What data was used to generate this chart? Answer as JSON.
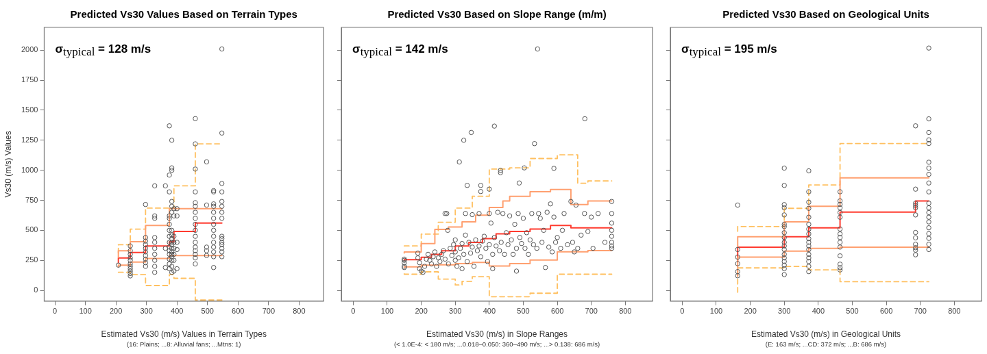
{
  "chart_data": [
    {
      "type": "scatter",
      "title": "Predicted Vs30 Values Based on Terrain Types",
      "xlabel": "Estimated Vs30 (m/s) Values in Terrain Types",
      "ylabel": "Vs30 (m/s) Values",
      "annotations": [
        "σ$_{typical}$ = 128 m/s",
        "(16: Plains; ...8: Alluvial fans; ...Mtns: 1)"
      ],
      "xlim": [
        -35,
        880
      ],
      "ylim": [
        -90,
        2190
      ],
      "xticks": [
        0,
        100,
        200,
        300,
        400,
        500,
        600,
        700,
        800
      ],
      "yticks": [
        0,
        250,
        500,
        750,
        1000,
        1250,
        1500,
        1750,
        2000
      ],
      "grid": false,
      "series": [
        {
          "marker": "circle",
          "color": "#555555",
          "x": [
            208,
            247,
            247,
            247,
            247,
            247,
            247,
            247,
            247,
            247,
            247,
            247,
            297,
            297,
            297,
            297,
            297,
            297,
            297,
            297,
            297,
            297,
            327,
            327,
            327,
            327,
            327,
            327,
            327,
            327,
            327,
            327,
            362,
            362,
            362,
            375,
            375,
            375,
            375,
            375,
            375,
            375,
            375,
            375,
            375,
            375,
            375,
            375,
            375,
            375,
            383,
            383,
            383,
            383,
            383,
            383,
            383,
            383,
            383,
            383,
            383,
            383,
            383,
            383,
            383,
            383,
            383,
            383,
            390,
            390,
            390,
            390,
            390,
            390,
            390,
            390,
            400,
            400,
            400,
            400,
            400,
            460,
            460,
            460,
            460,
            460,
            460,
            460,
            460,
            460,
            460,
            460,
            460,
            460,
            460,
            460,
            460,
            460,
            497,
            497,
            497,
            497,
            497,
            520,
            520,
            520,
            520,
            520,
            520,
            520,
            520,
            520,
            520,
            520,
            520,
            520,
            520,
            547,
            547,
            547,
            547,
            547,
            547,
            547,
            547,
            547,
            547,
            547,
            547,
            547,
            547,
            547
          ],
          "values": [
            210,
            120,
            140,
            160,
            180,
            200,
            220,
            250,
            270,
            300,
            330,
            370,
            200,
            230,
            260,
            290,
            320,
            350,
            380,
            410,
            440,
            715,
            150,
            200,
            250,
            300,
            350,
            400,
            440,
            600,
            620,
            870,
            350,
            190,
            870,
            180,
            220,
            260,
            300,
            330,
            360,
            400,
            450,
            500,
            550,
            600,
            620,
            820,
            960,
            1370,
            150,
            200,
            250,
            280,
            300,
            320,
            350,
            380,
            400,
            430,
            460,
            500,
            650,
            700,
            740,
            1000,
            1020,
            1250,
            160,
            250,
            300,
            350,
            400,
            450,
            620,
            680,
            180,
            340,
            400,
            620,
            680,
            220,
            270,
            300,
            330,
            360,
            400,
            450,
            500,
            550,
            600,
            650,
            700,
            730,
            820,
            1010,
            1220,
            1430,
            290,
            330,
            360,
            710,
            1070,
            190,
            280,
            320,
            360,
            400,
            450,
            500,
            550,
            600,
            650,
            700,
            720,
            820,
            830,
            280,
            320,
            350,
            380,
            400,
            430,
            450,
            600,
            650,
            700,
            740,
            820,
            890,
            1310,
            2010
          ]
        },
        {
          "type": "step",
          "color": "#ffa070",
          "line_style": "solid",
          "x": [
            208,
            247,
            297,
            375,
            460,
            547
          ],
          "values": [
            275,
            330,
            405,
            540,
            680,
            680
          ]
        },
        {
          "type": "step",
          "color": "#ffa070",
          "line_style": "solid",
          "x": [
            208,
            247,
            297,
            375,
            460,
            547
          ],
          "values": [
            195,
            210,
            235,
            265,
            290,
            290
          ]
        },
        {
          "type": "step",
          "color": "#ffc060",
          "line_style": "dashed",
          "x": [
            208,
            247,
            297,
            375,
            390,
            460,
            547
          ],
          "values": [
            310,
            380,
            510,
            685,
            685,
            870,
            1220
          ]
        },
        {
          "type": "step",
          "color": "#ffc060",
          "line_style": "dashed",
          "x": [
            208,
            247,
            297,
            375,
            390,
            460,
            547
          ],
          "values": [
            150,
            150,
            130,
            40,
            130,
            100,
            -80
          ]
        },
        {
          "type": "step",
          "color": "#ff3b2f",
          "line_style": "solid",
          "x": [
            208,
            247,
            297,
            375,
            390,
            460,
            547
          ],
          "values": [
            230,
            270,
            315,
            370,
            405,
            490,
            560
          ]
        }
      ]
    },
    {
      "type": "scatter",
      "title": "Predicted Vs30 Based on Slope Range (m/m)",
      "xlabel": "Estimated Vs30 (m/s) in Slope Ranges",
      "annotations": [
        "σ$_{typical}$ = 142 m/s",
        "(< 1.0E-4: < 180 m/s; ...0.018–0.050: 360–490 m/s; ...> 0.138: 686 m/s)"
      ],
      "xlim": [
        -35,
        880
      ],
      "ylim": [
        -90,
        2190
      ],
      "xticks": [
        0,
        100,
        200,
        300,
        400,
        500,
        600,
        700,
        800
      ],
      "yticks": [
        0,
        250,
        500,
        750,
        1000,
        1250,
        1500,
        1750,
        2000
      ],
      "tick_labels": "x",
      "grid": false,
      "series": [
        {
          "marker": "circle",
          "color": "#555555",
          "x": [
            150,
            150,
            150,
            150,
            150,
            190,
            190,
            195,
            195,
            200,
            205,
            210,
            215,
            220,
            225,
            230,
            235,
            240,
            245,
            250,
            255,
            260,
            265,
            270,
            270,
            275,
            278,
            280,
            285,
            290,
            295,
            300,
            300,
            300,
            305,
            310,
            315,
            320,
            320,
            325,
            330,
            330,
            335,
            340,
            345,
            350,
            350,
            355,
            360,
            365,
            370,
            370,
            375,
            380,
            385,
            390,
            395,
            400,
            400,
            405,
            410,
            415,
            420,
            425,
            430,
            435,
            440,
            445,
            450,
            455,
            460,
            465,
            470,
            475,
            480,
            485,
            490,
            495,
            500,
            505,
            510,
            515,
            520,
            525,
            530,
            540,
            545,
            550,
            555,
            560,
            565,
            570,
            575,
            580,
            585,
            590,
            595,
            600,
            610,
            615,
            620,
            630,
            640,
            645,
            650,
            655,
            660,
            670,
            680,
            690,
            700,
            705,
            720,
            740,
            760,
            760,
            760,
            760,
            760,
            760,
            760,
            760,
            542,
            681,
            415,
            347,
            325,
            312,
            533,
            433,
            433,
            503,
            590,
            335,
            375,
            375,
            400,
            488,
            480,
            410
          ],
          "values": [
            250,
            260,
            230,
            200,
            190,
            310,
            270,
            230,
            180,
            160,
            150,
            200,
            260,
            300,
            250,
            220,
            280,
            320,
            200,
            270,
            240,
            300,
            330,
            260,
            640,
            640,
            500,
            220,
            350,
            290,
            380,
            420,
            320,
            250,
            200,
            270,
            350,
            390,
            180,
            300,
            460,
            640,
            240,
            400,
            310,
            360,
            630,
            200,
            420,
            330,
            370,
            640,
            280,
            410,
            450,
            350,
            240,
            380,
            640,
            560,
            300,
            440,
            370,
            650,
            330,
            400,
            640,
            300,
            480,
            380,
            620,
            420,
            300,
            550,
            350,
            640,
            440,
            390,
            600,
            350,
            480,
            300,
            420,
            640,
            380,
            350,
            640,
            600,
            400,
            500,
            190,
            650,
            360,
            720,
            320,
            610,
            400,
            440,
            350,
            500,
            640,
            380,
            740,
            400,
            320,
            710,
            350,
            460,
            640,
            490,
            610,
            350,
            640,
            400,
            740,
            640,
            560,
            500,
            450,
            400,
            370,
            350,
            2010,
            1429,
            1368,
            1315,
            1250,
            1069,
            1222,
            1000,
            980,
            1020,
            1016,
            874,
            874,
            823,
            843,
            894,
            160,
            180
          ]
        },
        {
          "type": "step",
          "color": "#ffa070",
          "line_style": "solid",
          "x": [
            150,
            200,
            240,
            280,
            320,
            360,
            400,
            440,
            460,
            520,
            580,
            640,
            690,
            760
          ],
          "values": [
            311,
            320,
            390,
            508,
            527,
            570,
            626,
            690,
            744,
            783,
            822,
            840,
            714,
            744
          ]
        },
        {
          "type": "step",
          "color": "#ffa070",
          "line_style": "solid",
          "x": [
            150,
            200,
            250,
            300,
            350,
            400,
            460,
            520,
            600,
            690,
            760
          ],
          "values": [
            193,
            195,
            210,
            213,
            222,
            232,
            203,
            222,
            252,
            321,
            331
          ]
        },
        {
          "type": "step",
          "color": "#ffc060",
          "line_style": "dashed",
          "x": [
            150,
            200,
            250,
            300,
            350,
            400,
            460,
            520,
            600,
            660,
            690,
            760
          ],
          "values": [
            370,
            370,
            468,
            567,
            685,
            783,
            1010,
            1020,
            1098,
            1128,
            892,
            911
          ]
        },
        {
          "type": "step",
          "color": "#ffc060",
          "line_style": "dashed",
          "x": [
            150,
            200,
            250,
            300,
            320,
            350,
            400,
            460,
            520,
            600,
            690,
            760
          ],
          "values": [
            138,
            134,
            154,
            94,
            45,
            75,
            114,
            -53,
            -53,
            -24,
            134,
            134
          ]
        },
        {
          "type": "step",
          "color": "#ff3b2f",
          "line_style": "solid",
          "x": [
            150,
            200,
            230,
            260,
            300,
            340,
            380,
            420,
            460,
            520,
            580,
            640,
            690,
            760
          ],
          "values": [
            250,
            255,
            275,
            300,
            330,
            370,
            400,
            430,
            470,
            490,
            510,
            540,
            520,
            520
          ]
        }
      ]
    },
    {
      "type": "scatter",
      "title": "Predicted Vs30 Based on Geological Units",
      "xlabel": "Estimated Vs30 (m/s) in Geological Units",
      "annotations": [
        "σ$_{typical}$ = 195 m/s",
        "(E: 163 m/s; ...CD: 372 m/s; ...B: 686 m/s)"
      ],
      "xlim": [
        -35,
        880
      ],
      "ylim": [
        -90,
        2190
      ],
      "xticks": [
        0,
        100,
        200,
        300,
        400,
        500,
        600,
        700,
        800
      ],
      "yticks": [
        0,
        250,
        500,
        750,
        1000,
        1250,
        1500,
        1750,
        2000
      ],
      "tick_labels": "x",
      "grid": false,
      "series": [
        {
          "marker": "circle",
          "color": "#555555",
          "x": [
            163,
            163,
            163,
            163,
            163,
            163,
            300,
            300,
            300,
            300,
            300,
            300,
            300,
            300,
            300,
            300,
            300,
            300,
            300,
            300,
            300,
            300,
            300,
            300,
            372,
            372,
            372,
            372,
            372,
            372,
            372,
            372,
            372,
            372,
            372,
            372,
            372,
            372,
            372,
            372,
            372,
            464,
            464,
            464,
            464,
            464,
            464,
            464,
            464,
            464,
            464,
            464,
            464,
            464,
            464,
            464,
            686,
            686,
            686,
            686,
            686,
            686,
            686,
            686,
            686,
            686,
            686,
            686,
            725,
            725,
            725,
            725,
            725,
            725,
            725,
            725,
            725,
            725,
            725,
            725,
            725,
            725,
            725,
            725,
            725,
            725,
            725,
            725
          ],
          "values": [
            710,
            340,
            277,
            222,
            156,
            121,
            1018,
            874,
            714,
            687,
            628,
            550,
            531,
            480,
            440,
            400,
            370,
            340,
            300,
            270,
            240,
            210,
            180,
            131,
            995,
            821,
            734,
            683,
            609,
            550,
            510,
            470,
            430,
            400,
            370,
            340,
            300,
            270,
            240,
            200,
            156,
            821,
            745,
            716,
            687,
            648,
            609,
            511,
            470,
            440,
            400,
            360,
            287,
            218,
            189,
            170,
            1370,
            843,
            726,
            706,
            687,
            628,
            482,
            437,
            384,
            355,
            335,
            296,
            2018,
            1428,
            1315,
            1253,
            1223,
            1067,
            1018,
            966,
            894,
            820,
            726,
            687,
            648,
            609,
            570,
            521,
            472,
            433,
            384,
            340
          ]
        },
        {
          "type": "step",
          "color": "#ffa070",
          "line_style": "solid",
          "x": [
            163,
            300,
            372,
            464,
            686,
            725
          ],
          "values": [
            363,
            447,
            570,
            700,
            937,
            937
          ]
        },
        {
          "type": "step",
          "color": "#ffa070",
          "line_style": "solid",
          "x": [
            163,
            300,
            372,
            464,
            686,
            725
          ],
          "values": [
            117,
            277,
            326,
            349,
            359,
            359
          ]
        },
        {
          "type": "step",
          "color": "#ffc060",
          "line_style": "dashed",
          "x": [
            163,
            300,
            372,
            464,
            686,
            725
          ],
          "values": [
            492,
            531,
            683,
            878,
            1223,
            1223
          ]
        },
        {
          "type": "step",
          "color": "#ffc060",
          "line_style": "dashed",
          "x": [
            163,
            300,
            372,
            464,
            686,
            725
          ],
          "values": [
            -16,
            187,
            199,
            170,
            72,
            72
          ]
        },
        {
          "type": "step",
          "color": "#ff3b2f",
          "line_style": "solid",
          "x": [
            163,
            300,
            372,
            464,
            686,
            725
          ],
          "values": [
            238,
            359,
            447,
            521,
            652,
            745
          ]
        }
      ]
    }
  ]
}
